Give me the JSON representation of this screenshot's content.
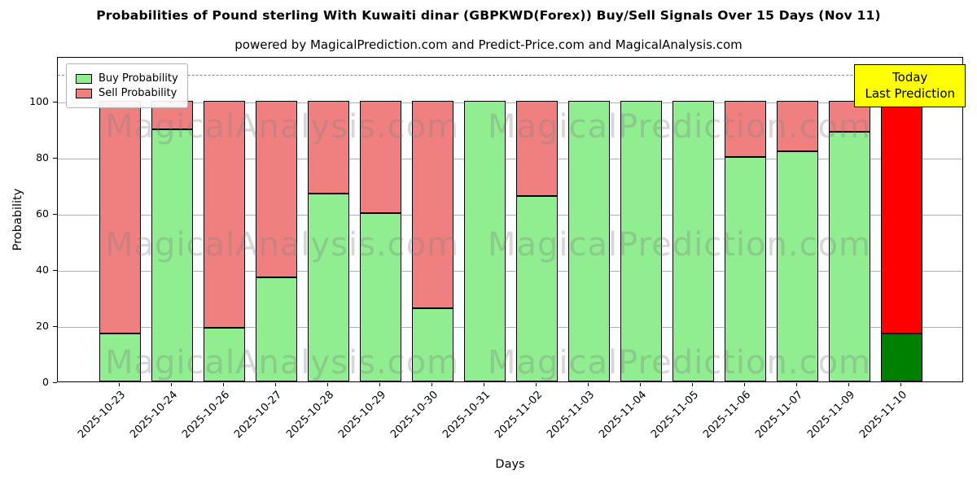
{
  "chart_data": {
    "type": "bar",
    "stacked": true,
    "title": "Probabilities of Pound sterling With Kuwaiti dinar (GBPKWD(Forex)) Buy/Sell Signals Over 15 Days (Nov 11)",
    "subtitle": "powered by MagicalPrediction.com and Predict-Price.com and MagicalAnalysis.com",
    "xlabel": "Days",
    "ylabel": "Probability",
    "categories": [
      "2025-10-23",
      "2025-10-24",
      "2025-10-26",
      "2025-10-27",
      "2025-10-28",
      "2025-10-29",
      "2025-10-30",
      "2025-10-31",
      "2025-11-02",
      "2025-11-03",
      "2025-11-04",
      "2025-11-05",
      "2025-11-06",
      "2025-11-07",
      "2025-11-09",
      "2025-11-10"
    ],
    "series": [
      {
        "name": "Buy Probability",
        "color": "#90EE90",
        "values": [
          17,
          90,
          19,
          37,
          67,
          60,
          26,
          100,
          66,
          100,
          100,
          100,
          80,
          82,
          89,
          17
        ]
      },
      {
        "name": "Sell Probability",
        "color": "#F08080",
        "values": [
          83,
          10,
          81,
          63,
          33,
          40,
          74,
          0,
          34,
          0,
          0,
          0,
          20,
          18,
          11,
          83
        ]
      }
    ],
    "highlight_last_bar": {
      "buy_color": "#008000",
      "sell_color": "#FF0000"
    },
    "yticks": [
      0,
      20,
      40,
      60,
      80,
      100
    ],
    "ylim": [
      0,
      116
    ],
    "dashed_line_y": 110,
    "grid": true,
    "legend_position": "upper-left"
  },
  "annotation": {
    "line1": "Today",
    "line2": "Last Prediction",
    "bg_color": "#FFFF00"
  },
  "watermarks": {
    "left": "MagicalAnalysis.com",
    "right": "MagicalPrediction.com"
  }
}
